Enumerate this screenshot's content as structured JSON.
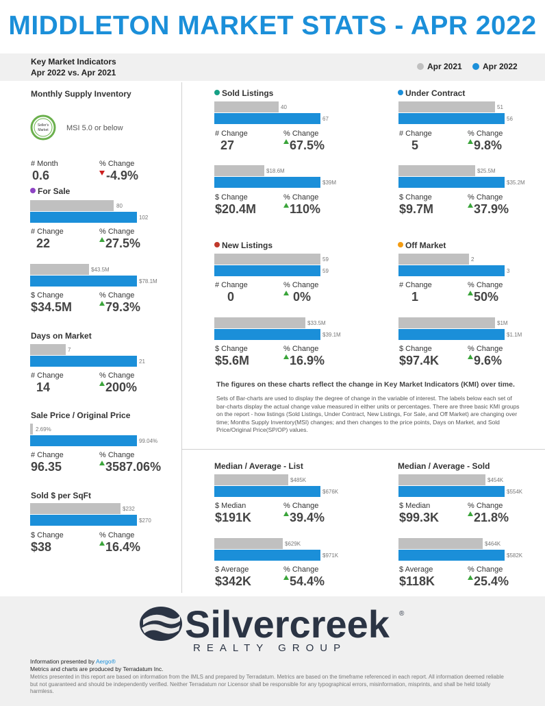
{
  "header": {
    "title": "MIDDLETON MARKET STATS - APR 2022",
    "kmi_title": "Key Market Indicators",
    "kmi_sub": "Apr 2022 vs. Apr 2021",
    "legend_prev": "Apr 2021",
    "legend_curr": "Apr 2022",
    "color_prev": "#c0c0c0",
    "color_curr": "#1b8fd9"
  },
  "left": {
    "msi_title": "Monthly Supply Inventory",
    "msi_badge": "Seller's Market",
    "msi_text": "MSI 5.0 or below",
    "msi_month_label": "# Month",
    "msi_month_value": "0.6",
    "msi_pct_label": "% Change",
    "msi_pct_value": "-4.9%",
    "for_sale": {
      "title": "For Sale",
      "dot_color": "#8e44c4",
      "count_prev": "80",
      "count_curr": "102",
      "count_change_label": "# Change",
      "count_change": "22",
      "count_pct_label": "% Change",
      "count_pct": "27.5%",
      "vol_prev": "$43.5M",
      "vol_curr": "$78.1M",
      "vol_change_label": "$ Change",
      "vol_change": "$34.5M",
      "vol_pct_label": "% Change",
      "vol_pct": "79.3%"
    },
    "dom": {
      "title": "Days on Market",
      "prev": "7",
      "curr": "21",
      "change_label": "# Change",
      "change": "14",
      "pct_label": "% Change",
      "pct": "200%"
    },
    "sp_op": {
      "title": "Sale Price / Original Price",
      "prev": "2.69%",
      "curr": "99.04%",
      "change_label": "# Change",
      "change": "96.35",
      "pct_label": "% Change",
      "pct": "3587.06%"
    },
    "sqft": {
      "title": "Sold $ per SqFt",
      "prev": "$232",
      "curr": "$270",
      "change_label": "$ Change",
      "change": "$38",
      "pct_label": "% Change",
      "pct": "16.4%"
    }
  },
  "kmi": {
    "sold": {
      "title": "Sold Listings",
      "dot_color": "#16a085",
      "count_prev": "40",
      "count_curr": "67",
      "count_change_label": "# Change",
      "count_change": "27",
      "count_pct_label": "% Change",
      "count_pct": "67.5%",
      "vol_prev": "$18.6M",
      "vol_curr": "$39M",
      "vol_change_label": "$ Change",
      "vol_change": "$20.4M",
      "vol_pct_label": "% Change",
      "vol_pct": "110%"
    },
    "under_contract": {
      "title": "Under Contract",
      "dot_color": "#1b8fd9",
      "count_prev": "51",
      "count_curr": "56",
      "count_change_label": "# Change",
      "count_change": "5",
      "count_pct_label": "% Change",
      "count_pct": "9.8%",
      "vol_prev": "$25.5M",
      "vol_curr": "$35.2M",
      "vol_change_label": "$ Change",
      "vol_change": "$9.7M",
      "vol_pct_label": "% Change",
      "vol_pct": "37.9%"
    },
    "new_listings": {
      "title": "New Listings",
      "dot_color": "#c0392b",
      "count_prev": "59",
      "count_curr": "59",
      "count_change_label": "# Change",
      "count_change": "0",
      "count_pct_label": "% Change",
      "count_pct": "0%",
      "vol_prev": "$33.5M",
      "vol_curr": "$39.1M",
      "vol_change_label": "$ Change",
      "vol_change": "$5.6M",
      "vol_pct_label": "% Change",
      "vol_pct": "16.9%"
    },
    "off_market": {
      "title": "Off Market",
      "dot_color": "#f39c12",
      "count_prev": "2",
      "count_curr": "3",
      "count_change_label": "# Change",
      "count_change": "1",
      "count_pct_label": "% Change",
      "count_pct": "50%",
      "vol_prev": "$1M",
      "vol_curr": "$1.1M",
      "vol_change_label": "$ Change",
      "vol_change": "$97.4K",
      "vol_pct_label": "% Change",
      "vol_pct": "9.6%"
    }
  },
  "explain": {
    "heading": "The figures on these charts reflect the change in Key Market Indicators (KMI) over time.",
    "body": "Sets of Bar-charts are used to display the degree of change in the variable of interest. The labels below each set of bar-charts display the actual change value measured in either units or percentages. There are three basic KMI groups on the report - how listings (Sold Listings, Under Contract, New Listings, For Sale, and Off Market) are changing over time; Months Supply Inventory(MSI) changes; and then changes to the price points, Days on Market, and Sold Price/Original Price(SP/OP) values."
  },
  "median": {
    "list": {
      "title": "Median / Average - List",
      "median_prev": "$485K",
      "median_curr": "$676K",
      "median_label": "$ Median",
      "median_change": "$191K",
      "median_pct_label": "% Change",
      "median_pct": "39.4%",
      "avg_prev": "$629K",
      "avg_curr": "$971K",
      "avg_label": "$ Average",
      "avg_change": "$342K",
      "avg_pct_label": "% Change",
      "avg_pct": "54.4%"
    },
    "sold": {
      "title": "Median / Average - Sold",
      "median_prev": "$454K",
      "median_curr": "$554K",
      "median_label": "$ Median",
      "median_change": "$99.3K",
      "median_pct_label": "% Change",
      "median_pct": "21.8%",
      "avg_prev": "$464K",
      "avg_curr": "$582K",
      "avg_label": "$ Average",
      "avg_change": "$118K",
      "avg_pct_label": "% Change",
      "avg_pct": "25.4%"
    }
  },
  "footer": {
    "logo_word": "Silvercreek",
    "logo_sub": "REALTY GROUP",
    "logo_reg": "®",
    "presented_prefix": "Information presented by",
    "presented_by": "Aergo®",
    "metrics_line": "Metrics and charts are produced by Terradatum Inc.",
    "disclaimer": "Metrics presented in this report are based on information from the IMLS and prepared by Terradatum. Metrics are based on the timeframe referenced in each report. All information deemed reliable but not guaranteed and should be independently verified. Neither Terradatum nor Licensor shall be responsible for any typographical errors, misinformation, misprints, and shall be held totally harmless."
  }
}
